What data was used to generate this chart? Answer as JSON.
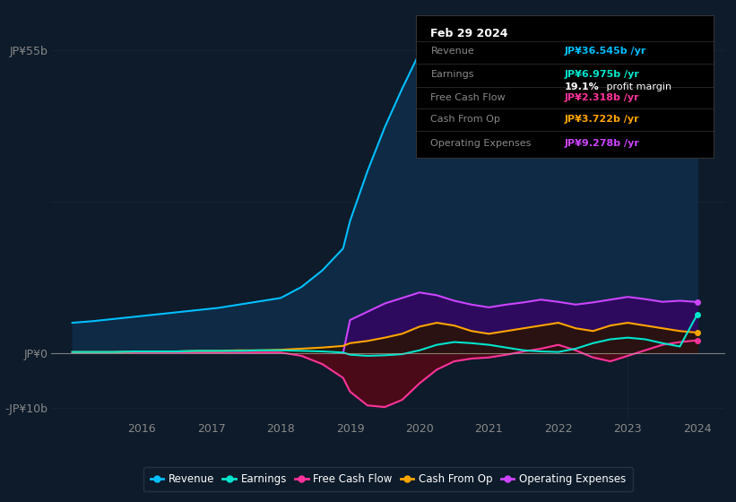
{
  "background_color": "#0d1b2a",
  "plot_bg_color": "#0d1b2a",
  "ylim": [
    -12,
    60
  ],
  "xlim": [
    2014.7,
    2024.4
  ],
  "years": [
    2015.0,
    2015.3,
    2015.6,
    2015.9,
    2016.2,
    2016.5,
    2016.8,
    2017.1,
    2017.4,
    2017.7,
    2018.0,
    2018.3,
    2018.6,
    2018.9,
    2019.0,
    2019.25,
    2019.5,
    2019.75,
    2020.0,
    2020.25,
    2020.5,
    2020.75,
    2021.0,
    2021.25,
    2021.5,
    2021.75,
    2022.0,
    2022.25,
    2022.5,
    2022.75,
    2023.0,
    2023.25,
    2023.5,
    2023.75,
    2024.0
  ],
  "revenue": [
    5.5,
    5.8,
    6.2,
    6.6,
    7.0,
    7.4,
    7.8,
    8.2,
    8.8,
    9.4,
    10.0,
    12.0,
    15.0,
    19.0,
    24.0,
    33.0,
    41.0,
    48.0,
    54.5,
    53.0,
    46.0,
    43.0,
    41.0,
    42.5,
    43.5,
    44.5,
    43.0,
    45.0,
    49.0,
    51.5,
    52.0,
    49.0,
    44.0,
    40.0,
    36.545
  ],
  "earnings": [
    0.2,
    0.2,
    0.2,
    0.3,
    0.3,
    0.3,
    0.4,
    0.4,
    0.4,
    0.5,
    0.5,
    0.4,
    0.3,
    0.1,
    -0.3,
    -0.5,
    -0.4,
    -0.2,
    0.5,
    1.5,
    2.0,
    1.8,
    1.5,
    1.0,
    0.5,
    0.3,
    0.2,
    0.8,
    1.8,
    2.5,
    2.8,
    2.5,
    1.8,
    1.2,
    6.975
  ],
  "free_cash_flow": [
    0.1,
    0.1,
    0.1,
    0.1,
    0.1,
    0.1,
    0.1,
    0.1,
    0.1,
    0.1,
    0.1,
    -0.5,
    -2.0,
    -4.5,
    -7.0,
    -9.5,
    -9.8,
    -8.5,
    -5.5,
    -3.0,
    -1.5,
    -1.0,
    -0.8,
    -0.3,
    0.3,
    0.8,
    1.5,
    0.5,
    -0.8,
    -1.5,
    -0.5,
    0.5,
    1.5,
    2.0,
    2.318
  ],
  "cash_from_op": [
    0.2,
    0.2,
    0.2,
    0.3,
    0.3,
    0.3,
    0.4,
    0.4,
    0.5,
    0.5,
    0.6,
    0.8,
    1.0,
    1.3,
    1.8,
    2.2,
    2.8,
    3.5,
    4.8,
    5.5,
    5.0,
    4.0,
    3.5,
    4.0,
    4.5,
    5.0,
    5.5,
    4.5,
    4.0,
    5.0,
    5.5,
    5.0,
    4.5,
    4.0,
    3.722
  ],
  "operating_expenses": [
    0,
    0,
    0,
    0,
    0,
    0,
    0,
    0,
    0,
    0,
    0,
    0,
    0,
    0,
    6.0,
    7.5,
    9.0,
    10.0,
    11.0,
    10.5,
    9.5,
    8.8,
    8.3,
    8.8,
    9.2,
    9.7,
    9.3,
    8.8,
    9.2,
    9.7,
    10.2,
    9.8,
    9.3,
    9.5,
    9.278
  ],
  "revenue_color": "#00bfff",
  "revenue_fill": "#0f2a45",
  "earnings_color": "#00e5cc",
  "free_cash_flow_color": "#ff3399",
  "cash_from_op_color": "#ffa500",
  "operating_expenses_color": "#cc44ff",
  "operating_expenses_fill": "#2d0a5e",
  "neg_fcf_fill": "#4a0a18",
  "grid_color": "#162535",
  "zero_line_color": "#aaaaaa",
  "text_color": "#888888",
  "xticks": [
    2016,
    2017,
    2018,
    2019,
    2020,
    2021,
    2022,
    2023,
    2024
  ],
  "yticks": [
    55,
    0,
    -10
  ],
  "ytick_labels": [
    "JP¥55b",
    "JP¥0",
    "-JP¥10b"
  ],
  "info_box": {
    "date": "Feb 29 2024",
    "revenue_label": "Revenue",
    "revenue_val": "JP¥36.545b",
    "revenue_color": "#00bfff",
    "earnings_label": "Earnings",
    "earnings_val": "JP¥6.975b",
    "earnings_color": "#00e5cc",
    "profit_margin": "19.1%",
    "fcf_label": "Free Cash Flow",
    "fcf_val": "JP¥2.318b",
    "fcf_color": "#ff3399",
    "cash_from_op_label": "Cash From Op",
    "cash_from_op_val": "JP¥3.722b",
    "cash_from_op_color": "#ffa500",
    "op_exp_label": "Operating Expenses",
    "op_exp_val": "JP¥9.278b",
    "op_exp_color": "#cc44ff"
  },
  "legend_items": [
    {
      "label": "Revenue",
      "color": "#00bfff"
    },
    {
      "label": "Earnings",
      "color": "#00e5cc"
    },
    {
      "label": "Free Cash Flow",
      "color": "#ff3399"
    },
    {
      "label": "Cash From Op",
      "color": "#ffa500"
    },
    {
      "label": "Operating Expenses",
      "color": "#cc44ff"
    }
  ]
}
